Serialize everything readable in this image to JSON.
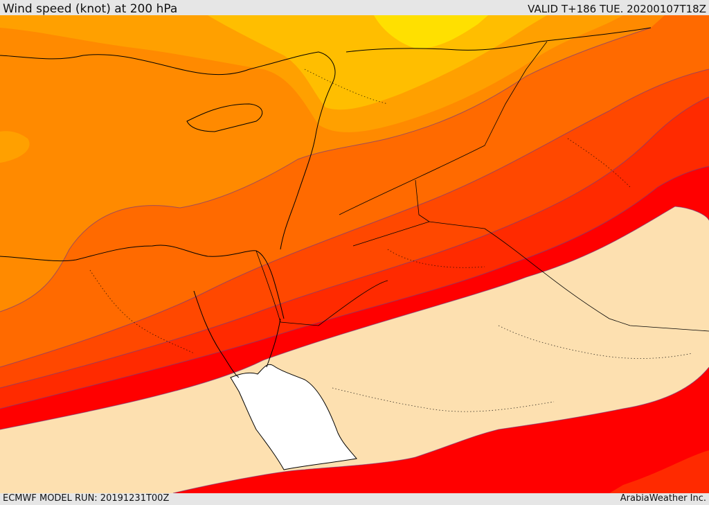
{
  "header": {
    "title": "Wind speed (knot) at 200 hPa",
    "valid_time": "VALID T+186 TUE. 20200107T18Z"
  },
  "footer": {
    "model_run": "ECMWF MODEL RUN: 20191231T00Z",
    "credit": "ArabiaWeather Inc."
  },
  "colors": {
    "band_yellow": "#ffe000",
    "band_gold": "#ffbe00",
    "band_amber": "#ffa000",
    "band_orange": "#ff8a00",
    "band_dark_orange": "#ff6a00",
    "band_red_orange": "#ff4800",
    "band_orange_red": "#ff2a00",
    "band_red": "#ff0000",
    "calm_area": "#fde0b0",
    "sea_white": "#ffffff"
  }
}
